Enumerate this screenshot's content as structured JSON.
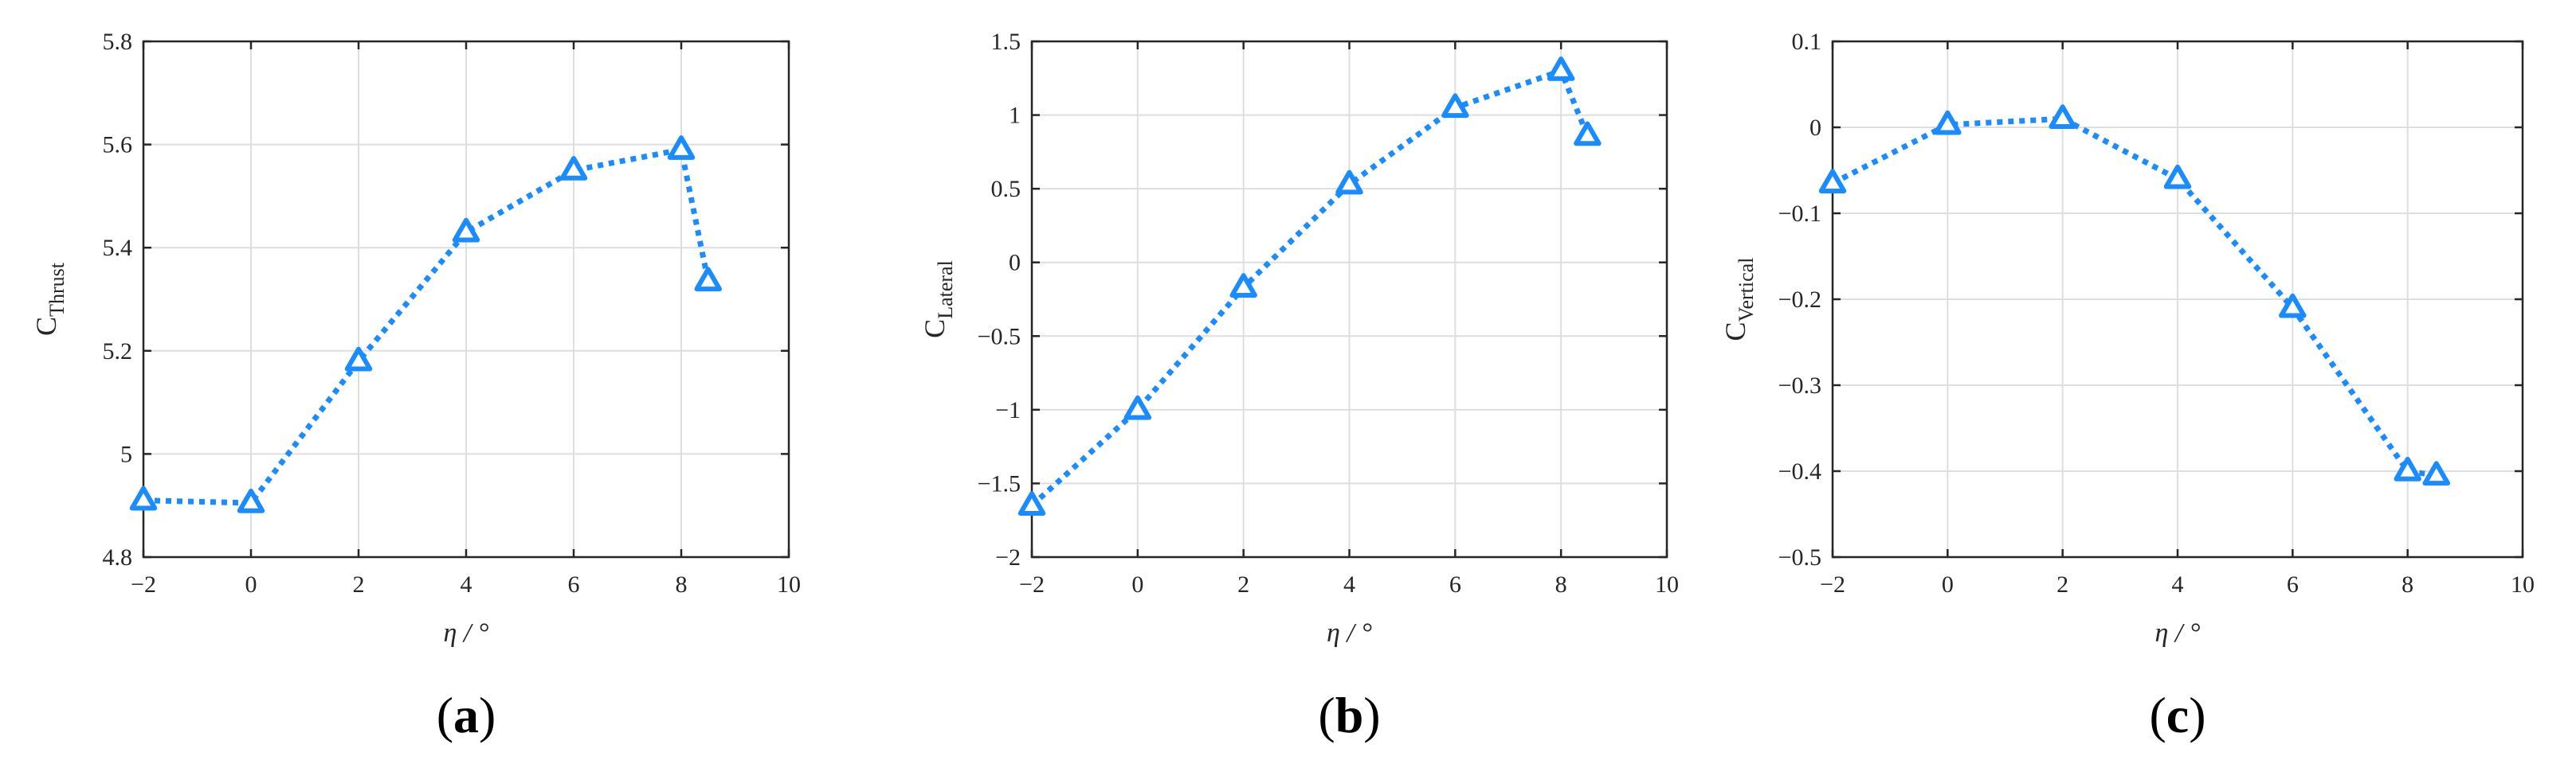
{
  "figure": {
    "panels": [
      {
        "label": "(a)",
        "ylabel_main": "C",
        "ylabel_sub": "Thrust",
        "xlabel": "η / °"
      },
      {
        "label": "(b)",
        "ylabel_main": "C",
        "ylabel_sub": "Lateral",
        "xlabel": "η / °"
      },
      {
        "label": "(c)",
        "ylabel_main": "C",
        "ylabel_sub": "Vertical",
        "xlabel": "η / °"
      }
    ]
  },
  "colors": {
    "series": "#1a8cff",
    "axis": "#262626",
    "grid": "#dedede"
  },
  "chart_data": [
    {
      "type": "line",
      "panel": "(a)",
      "xlabel": "η / °",
      "ylabel": "C_Thrust",
      "xlim": [
        -2,
        10
      ],
      "ylim": [
        4.8,
        5.8
      ],
      "xticks": [
        -2,
        0,
        2,
        4,
        6,
        8,
        10
      ],
      "xtick_labels": [
        "−2",
        "0",
        "2",
        "4",
        "6",
        "8",
        "10"
      ],
      "yticks": [
        4.8,
        5.0,
        5.2,
        5.4,
        5.6,
        5.8
      ],
      "ytick_labels": [
        "4.8",
        "5",
        "5.2",
        "5.4",
        "5.6",
        "5.8"
      ],
      "grid": true,
      "marker": "triangle",
      "line_style": "dotted",
      "series": [
        {
          "x": [
            -2,
            0,
            2,
            4,
            6,
            8,
            8.5
          ],
          "y": [
            4.91,
            4.905,
            5.18,
            5.43,
            5.55,
            5.59,
            5.335
          ]
        }
      ]
    },
    {
      "type": "line",
      "panel": "(b)",
      "xlabel": "η / °",
      "ylabel": "C_Lateral",
      "xlim": [
        -2,
        10
      ],
      "ylim": [
        -2,
        1.5
      ],
      "xticks": [
        -2,
        0,
        2,
        4,
        6,
        8,
        10
      ],
      "xtick_labels": [
        "−2",
        "0",
        "2",
        "4",
        "6",
        "8",
        "10"
      ],
      "yticks": [
        -2,
        -1.5,
        -1,
        -0.5,
        0,
        0.5,
        1,
        1.5
      ],
      "ytick_labels": [
        "−2",
        "−1.5",
        "−1",
        "−0.5",
        "0",
        "0.5",
        "1",
        "1.5"
      ],
      "grid": true,
      "marker": "triangle",
      "line_style": "dotted",
      "series": [
        {
          "x": [
            -2,
            0,
            2,
            4,
            6,
            8,
            8.5
          ],
          "y": [
            -1.65,
            -1.0,
            -0.17,
            0.53,
            1.05,
            1.3,
            0.86
          ]
        }
      ]
    },
    {
      "type": "line",
      "panel": "(c)",
      "xlabel": "η / °",
      "ylabel": "C_Vertical",
      "xlim": [
        -2,
        10
      ],
      "ylim": [
        -0.5,
        0.1
      ],
      "xticks": [
        -2,
        0,
        2,
        4,
        6,
        8,
        10
      ],
      "xtick_labels": [
        "−2",
        "0",
        "2",
        "4",
        "6",
        "8",
        "10"
      ],
      "yticks": [
        -0.5,
        -0.4,
        -0.3,
        -0.2,
        -0.1,
        0,
        0.1
      ],
      "ytick_labels": [
        "−0.5",
        "−0.4",
        "−0.3",
        "−0.2",
        "−0.1",
        "0",
        "0.1"
      ],
      "grid": true,
      "marker": "triangle",
      "line_style": "dotted",
      "series": [
        {
          "x": [
            -2,
            0,
            2,
            4,
            6,
            8,
            8.5
          ],
          "y": [
            -0.065,
            0.003,
            0.01,
            -0.06,
            -0.21,
            -0.4,
            -0.405
          ]
        }
      ]
    }
  ]
}
